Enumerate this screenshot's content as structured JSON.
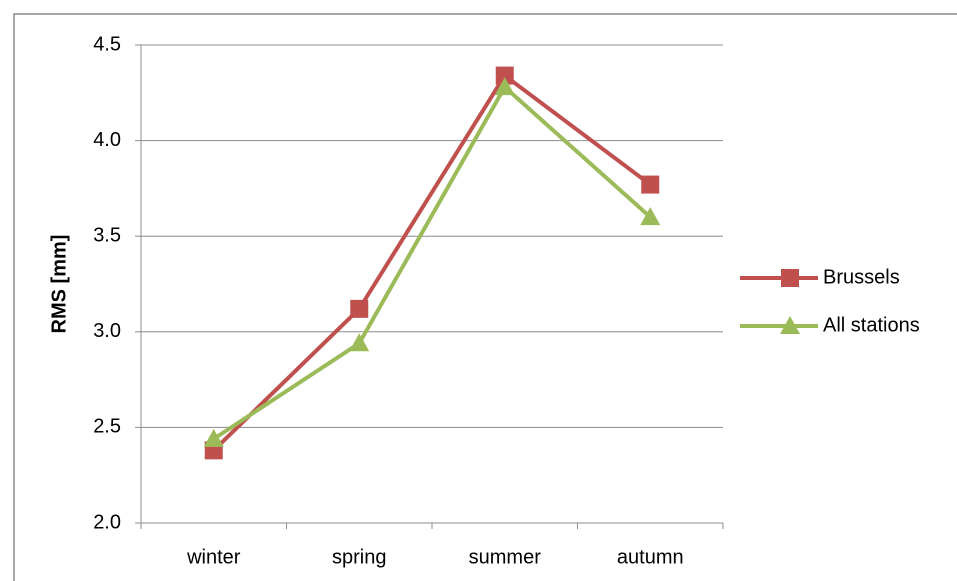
{
  "chart_data": {
    "type": "line",
    "y_label": "RMS [mm]",
    "categories": [
      "winter",
      "spring",
      "summer",
      "autumn"
    ],
    "series": [
      {
        "name": "Brussels",
        "color": "#c0504d",
        "marker": "square",
        "values": [
          2.38,
          3.12,
          4.34,
          3.77
        ]
      },
      {
        "name": "All stations",
        "color": "#9bbb59",
        "marker": "triangle",
        "values": [
          2.44,
          2.94,
          4.28,
          3.6
        ]
      }
    ],
    "ylim": [
      2.0,
      4.5
    ],
    "yticks": [
      {
        "value": 2,
        "label": "2.0"
      },
      2.5,
      {
        "value": 3,
        "label": "3.0"
      },
      3.5,
      {
        "value": 4,
        "label": "4.0"
      },
      4.5
    ],
    "grid": true,
    "legend": "right"
  }
}
